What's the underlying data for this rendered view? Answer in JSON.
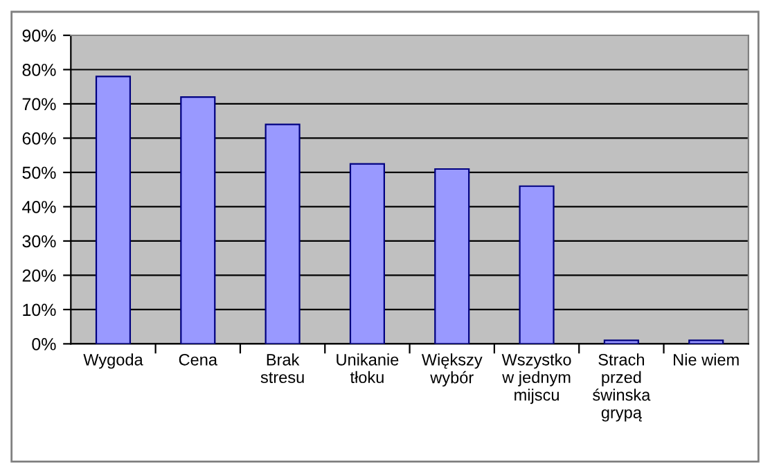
{
  "chart_data": {
    "type": "bar",
    "categories": [
      "Wygoda",
      "Cena",
      "Brak\nstresu",
      "Unikanie\ntłoku",
      "Większy\nwybór",
      "Wszystko\nw jednym\nmijscu",
      "Strach\nprzed\nświnska\ngrypą",
      "Nie wiem"
    ],
    "values": [
      78,
      72,
      64,
      52.5,
      51,
      46,
      1,
      1
    ],
    "color": "#9999ff",
    "ylim": [
      0,
      90
    ],
    "yticks": [
      {
        "value": 0,
        "label": "0%"
      },
      {
        "value": 10,
        "label": "10%"
      },
      {
        "value": 20,
        "label": "20%"
      },
      {
        "value": 30,
        "label": "30%"
      },
      {
        "value": 40,
        "label": "40%"
      },
      {
        "value": 50,
        "label": "50%"
      },
      {
        "value": 60,
        "label": "60%"
      },
      {
        "value": 70,
        "label": "70%"
      },
      {
        "value": 80,
        "label": "80%"
      },
      {
        "value": 90,
        "label": "90%"
      }
    ],
    "grid": "y",
    "legend": false
  }
}
